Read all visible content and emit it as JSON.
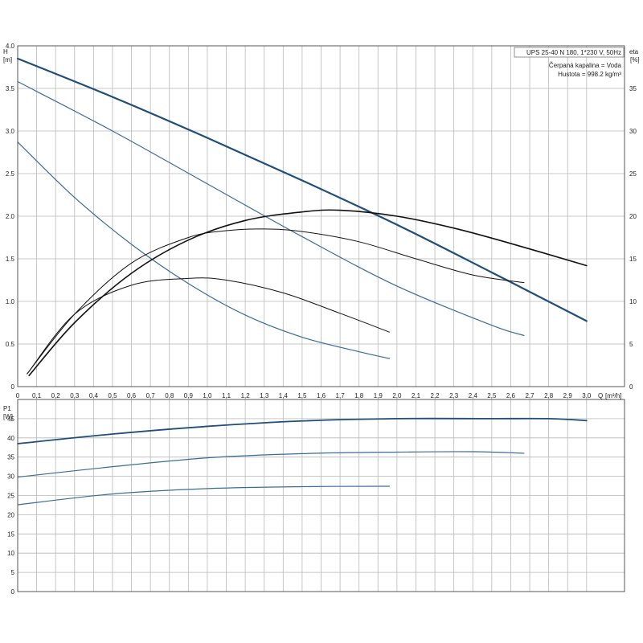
{
  "chart_data": [
    {
      "type": "line",
      "title": "",
      "ylabel": "H",
      "yunit": "[m]",
      "y2label": "eta",
      "y2unit": "[%]",
      "xlabel": "Q",
      "xunit": "[m³/h]",
      "xlim": [
        0,
        3.2
      ],
      "ylim": [
        0,
        4.0
      ],
      "y2lim": [
        0,
        40
      ],
      "grid": true,
      "xticks": [
        "0",
        "0,1",
        "0,2",
        "0,3",
        "0,4",
        "0,5",
        "0,6",
        "0,7",
        "0,8",
        "0,9",
        "1,0",
        "1,1",
        "1,2",
        "1,3",
        "1,4",
        "1,5",
        "1,6",
        "1,7",
        "1,8",
        "1,9",
        "2,0",
        "2,1",
        "2,2",
        "2,3",
        "2,4",
        "2,5",
        "2,6",
        "2,7",
        "2,8",
        "2,9",
        "3,0"
      ],
      "yticks": [
        "0",
        "0.5",
        "1.0",
        "1.5",
        "2.0",
        "2.5",
        "3.0",
        "3.5",
        "4.0"
      ],
      "y2ticks": [
        "0",
        "5",
        "10",
        "15",
        "20",
        "25",
        "30",
        "35"
      ],
      "annotations": [
        "UPS 25-40 N 180, 1*230 V, 50Hz",
        "Čerpaná kapalina = Voda",
        "Hustota = 998.2 kg/m³"
      ],
      "series": [
        {
          "role": "head",
          "color": "#1f4e79",
          "width": 2.2,
          "axis": "left",
          "x": [
            0,
            0.5,
            1.0,
            1.5,
            2.0,
            2.5,
            3.0
          ],
          "y": [
            3.85,
            3.4,
            2.92,
            2.42,
            1.9,
            1.34,
            0.77
          ]
        },
        {
          "role": "head",
          "color": "#3a6c98",
          "width": 1.2,
          "axis": "left",
          "x": [
            0,
            0.5,
            1.0,
            1.5,
            2.0,
            2.5,
            2.67
          ],
          "y": [
            3.58,
            3.0,
            2.38,
            1.76,
            1.18,
            0.72,
            0.6
          ]
        },
        {
          "role": "head",
          "color": "#3a6c98",
          "width": 1.2,
          "axis": "left",
          "x": [
            0,
            0.3,
            0.6,
            0.9,
            1.2,
            1.5,
            1.8,
            1.96
          ],
          "y": [
            2.87,
            2.22,
            1.67,
            1.21,
            0.84,
            0.58,
            0.41,
            0.33
          ]
        },
        {
          "role": "efficiency",
          "color": "#111111",
          "width": 1.6,
          "axis": "right",
          "x": [
            0.06,
            0.3,
            0.6,
            0.9,
            1.2,
            1.5,
            1.7,
            2.0,
            2.3,
            2.6,
            3.0
          ],
          "y": [
            1.3,
            7.5,
            13.3,
            17.2,
            19.5,
            20.5,
            20.7,
            20.0,
            18.6,
            16.8,
            14.2
          ]
        },
        {
          "role": "efficiency",
          "color": "#111111",
          "width": 1.0,
          "axis": "right",
          "x": [
            0.05,
            0.3,
            0.6,
            0.9,
            1.1,
            1.3,
            1.5,
            1.8,
            2.1,
            2.4,
            2.67
          ],
          "y": [
            1.5,
            8.5,
            14.5,
            17.5,
            18.3,
            18.5,
            18.2,
            17.0,
            15.0,
            13.1,
            12.2
          ]
        },
        {
          "role": "efficiency",
          "color": "#111111",
          "width": 1.0,
          "axis": "right",
          "x": [
            0.05,
            0.3,
            0.6,
            0.9,
            1.1,
            1.4,
            1.7,
            1.96
          ],
          "y": [
            1.5,
            8.5,
            11.9,
            12.7,
            12.5,
            11.0,
            8.6,
            6.4
          ]
        }
      ]
    },
    {
      "type": "line",
      "title": "",
      "ylabel": "P1",
      "yunit": "[W]",
      "xlim": [
        0,
        3.2
      ],
      "ylim": [
        0,
        50
      ],
      "grid": true,
      "yticks": [
        "0",
        "5",
        "10",
        "15",
        "20",
        "25",
        "30",
        "35",
        "40",
        "45"
      ],
      "series": [
        {
          "role": "power",
          "color": "#1f4e79",
          "width": 1.8,
          "x": [
            0,
            0.5,
            1.0,
            1.5,
            2.0,
            2.5,
            2.8,
            3.0
          ],
          "y": [
            38.5,
            41.0,
            43.0,
            44.4,
            45.0,
            45.0,
            45.0,
            44.5
          ]
        },
        {
          "role": "power",
          "color": "#3a6c98",
          "width": 1.2,
          "x": [
            0,
            0.5,
            1.0,
            1.5,
            2.0,
            2.4,
            2.67
          ],
          "y": [
            29.8,
            32.5,
            34.8,
            35.9,
            36.3,
            36.4,
            36.0
          ]
        },
        {
          "role": "power",
          "color": "#3a6c98",
          "width": 1.2,
          "x": [
            0,
            0.5,
            1.0,
            1.5,
            1.96
          ],
          "y": [
            22.6,
            25.4,
            26.8,
            27.3,
            27.4
          ]
        }
      ]
    }
  ]
}
